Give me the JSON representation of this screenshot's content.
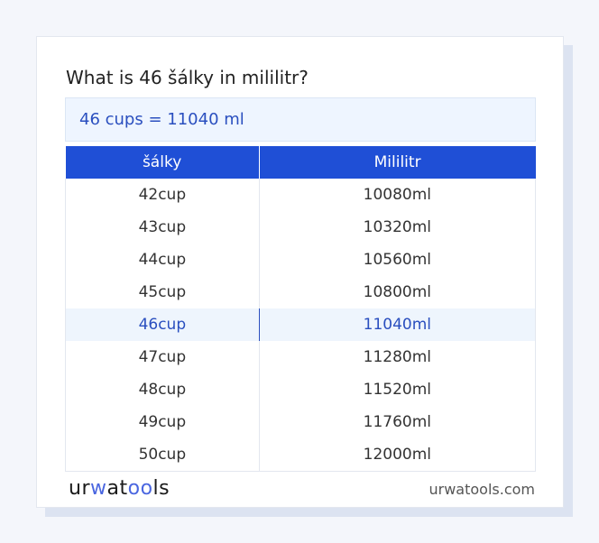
{
  "title": "What is 46 šálky in mililitr?",
  "result": "46 cups = 11040 ml",
  "table": {
    "headers": [
      "šálky",
      "Mililitr"
    ],
    "rows": [
      [
        "42cup",
        "10080ml"
      ],
      [
        "43cup",
        "10320ml"
      ],
      [
        "44cup",
        "10560ml"
      ],
      [
        "45cup",
        "10800ml"
      ],
      [
        "46cup",
        "11040ml"
      ],
      [
        "47cup",
        "11280ml"
      ],
      [
        "48cup",
        "11520ml"
      ],
      [
        "49cup",
        "11760ml"
      ],
      [
        "50cup",
        "12000ml"
      ]
    ],
    "highlighted_row": 4
  },
  "footer": {
    "logo": "urwatools",
    "site": "urwatools.com"
  },
  "colors": {
    "accent": "#1f4fd6",
    "highlight_text": "#2a4fbf"
  }
}
